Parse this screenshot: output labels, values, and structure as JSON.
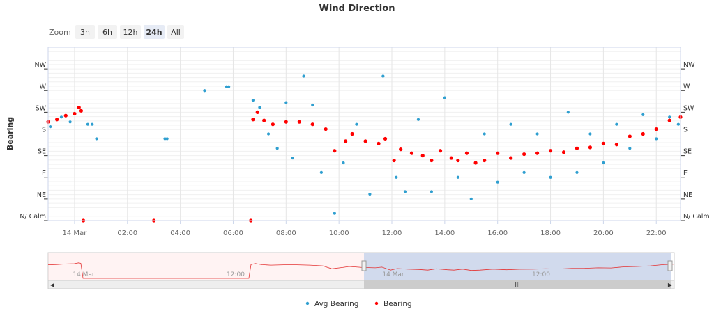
{
  "chart_data": {
    "type": "scatter",
    "title": "Wind Direction",
    "ylabel": "Bearing",
    "ylim": [
      0,
      360
    ],
    "y_tick_values": [
      0,
      45,
      90,
      135,
      180,
      225,
      270,
      315
    ],
    "y_tick_labels": [
      "N/ Calm",
      "NE",
      "E",
      "SE",
      "S",
      "SW",
      "W",
      "NW"
    ],
    "x_range": [
      "2023-03-13T23:00",
      "2023-03-14T22:55"
    ],
    "x_ticks": [
      {
        "t": "2023-03-14T00:00",
        "label": "14 Mar"
      },
      {
        "t": "2023-03-14T02:00",
        "label": "02:00"
      },
      {
        "t": "2023-03-14T04:00",
        "label": "04:00"
      },
      {
        "t": "2023-03-14T06:00",
        "label": "06:00"
      },
      {
        "t": "2023-03-14T08:00",
        "label": "08:00"
      },
      {
        "t": "2023-03-14T10:00",
        "label": "10:00"
      },
      {
        "t": "2023-03-14T12:00",
        "label": "12:00"
      },
      {
        "t": "2023-03-14T14:00",
        "label": "14:00"
      },
      {
        "t": "2023-03-14T16:00",
        "label": "16:00"
      },
      {
        "t": "2023-03-14T18:00",
        "label": "18:00"
      },
      {
        "t": "2023-03-14T20:00",
        "label": "20:00"
      },
      {
        "t": "2023-03-14T22:00",
        "label": "22:00"
      }
    ],
    "series": [
      {
        "name": "Bearing",
        "color": "#ff0000",
        "points": [
          [
            "2023-03-13T23:00",
            205
          ],
          [
            "2023-03-13T23:20",
            210
          ],
          [
            "2023-03-13T23:40",
            218
          ],
          [
            "2023-03-14T00:00",
            222
          ],
          [
            "2023-03-14T00:10",
            235
          ],
          [
            "2023-03-14T00:15",
            228
          ],
          [
            "2023-03-14T00:20",
            0
          ],
          [
            "2023-03-14T03:00",
            0
          ],
          [
            "2023-03-14T06:40",
            0
          ],
          [
            "2023-03-14T06:45",
            210
          ],
          [
            "2023-03-14T06:55",
            225
          ],
          [
            "2023-03-14T07:10",
            208
          ],
          [
            "2023-03-14T07:30",
            200
          ],
          [
            "2023-03-14T08:00",
            205
          ],
          [
            "2023-03-14T08:30",
            205
          ],
          [
            "2023-03-14T09:00",
            200
          ],
          [
            "2023-03-14T09:30",
            190
          ],
          [
            "2023-03-14T09:50",
            145
          ],
          [
            "2023-03-14T10:15",
            165
          ],
          [
            "2023-03-14T10:30",
            180
          ],
          [
            "2023-03-14T11:00",
            165
          ],
          [
            "2023-03-14T11:30",
            160
          ],
          [
            "2023-03-14T11:45",
            170
          ],
          [
            "2023-03-14T12:05",
            125
          ],
          [
            "2023-03-14T12:20",
            148
          ],
          [
            "2023-03-14T12:45",
            140
          ],
          [
            "2023-03-14T13:10",
            135
          ],
          [
            "2023-03-14T13:30",
            125
          ],
          [
            "2023-03-14T13:50",
            145
          ],
          [
            "2023-03-14T14:15",
            130
          ],
          [
            "2023-03-14T14:30",
            125
          ],
          [
            "2023-03-14T14:50",
            140
          ],
          [
            "2023-03-14T15:10",
            120
          ],
          [
            "2023-03-14T15:30",
            125
          ],
          [
            "2023-03-14T16:00",
            140
          ],
          [
            "2023-03-14T16:30",
            130
          ],
          [
            "2023-03-14T17:00",
            138
          ],
          [
            "2023-03-14T17:30",
            140
          ],
          [
            "2023-03-14T18:00",
            145
          ],
          [
            "2023-03-14T18:30",
            142
          ],
          [
            "2023-03-14T19:00",
            150
          ],
          [
            "2023-03-14T19:30",
            152
          ],
          [
            "2023-03-14T20:00",
            160
          ],
          [
            "2023-03-14T20:30",
            158
          ],
          [
            "2023-03-14T21:00",
            175
          ],
          [
            "2023-03-14T21:30",
            180
          ],
          [
            "2023-03-14T22:00",
            190
          ],
          [
            "2023-03-14T22:30",
            208
          ],
          [
            "2023-03-14T22:55",
            215
          ]
        ]
      },
      {
        "name": "Avg Bearing",
        "color": "#2f9fd0",
        "points": [
          [
            "2023-03-13T23:05",
            195
          ],
          [
            "2023-03-13T23:30",
            215
          ],
          [
            "2023-03-13T23:50",
            205
          ],
          [
            "2023-03-14T00:30",
            200
          ],
          [
            "2023-03-14T00:40",
            200
          ],
          [
            "2023-03-14T00:50",
            170
          ],
          [
            "2023-03-14T03:25",
            170
          ],
          [
            "2023-03-14T03:30",
            170
          ],
          [
            "2023-03-14T04:55",
            270
          ],
          [
            "2023-03-14T05:45",
            278
          ],
          [
            "2023-03-14T05:50",
            278
          ],
          [
            "2023-03-14T06:45",
            250
          ],
          [
            "2023-03-14T07:00",
            235
          ],
          [
            "2023-03-14T07:20",
            180
          ],
          [
            "2023-03-14T07:40",
            150
          ],
          [
            "2023-03-14T08:00",
            245
          ],
          [
            "2023-03-14T08:15",
            130
          ],
          [
            "2023-03-14T08:40",
            300
          ],
          [
            "2023-03-14T09:00",
            240
          ],
          [
            "2023-03-14T09:20",
            100
          ],
          [
            "2023-03-14T09:50",
            15
          ],
          [
            "2023-03-14T10:10",
            120
          ],
          [
            "2023-03-14T10:40",
            200
          ],
          [
            "2023-03-14T11:10",
            55
          ],
          [
            "2023-03-14T11:40",
            300
          ],
          [
            "2023-03-14T12:10",
            90
          ],
          [
            "2023-03-14T12:30",
            60
          ],
          [
            "2023-03-14T13:00",
            210
          ],
          [
            "2023-03-14T13:30",
            60
          ],
          [
            "2023-03-14T14:00",
            255
          ],
          [
            "2023-03-14T14:30",
            90
          ],
          [
            "2023-03-14T15:00",
            45
          ],
          [
            "2023-03-14T15:30",
            180
          ],
          [
            "2023-03-14T16:00",
            80
          ],
          [
            "2023-03-14T16:30",
            200
          ],
          [
            "2023-03-14T17:00",
            100
          ],
          [
            "2023-03-14T17:30",
            180
          ],
          [
            "2023-03-14T18:00",
            90
          ],
          [
            "2023-03-14T18:40",
            225
          ],
          [
            "2023-03-14T19:00",
            100
          ],
          [
            "2023-03-14T19:30",
            180
          ],
          [
            "2023-03-14T20:00",
            120
          ],
          [
            "2023-03-14T20:30",
            200
          ],
          [
            "2023-03-14T21:00",
            150
          ],
          [
            "2023-03-14T21:30",
            220
          ],
          [
            "2023-03-14T22:00",
            170
          ],
          [
            "2023-03-14T22:30",
            215
          ],
          [
            "2023-03-14T22:50",
            200
          ]
        ]
      }
    ],
    "legend": {
      "position": "bottom",
      "items": [
        "Avg Bearing",
        "Bearing"
      ]
    },
    "grid": true
  },
  "zoom": {
    "label": "Zoom",
    "buttons": [
      "3h",
      "6h",
      "12h",
      "24h",
      "All"
    ],
    "active": "24h"
  },
  "navigator": {
    "tick_labels": [
      "14 Mar",
      "12:00",
      "14 Mar",
      "12:00"
    ],
    "selection": [
      "2023-03-14T00:00",
      "2023-03-14T23:00"
    ]
  }
}
